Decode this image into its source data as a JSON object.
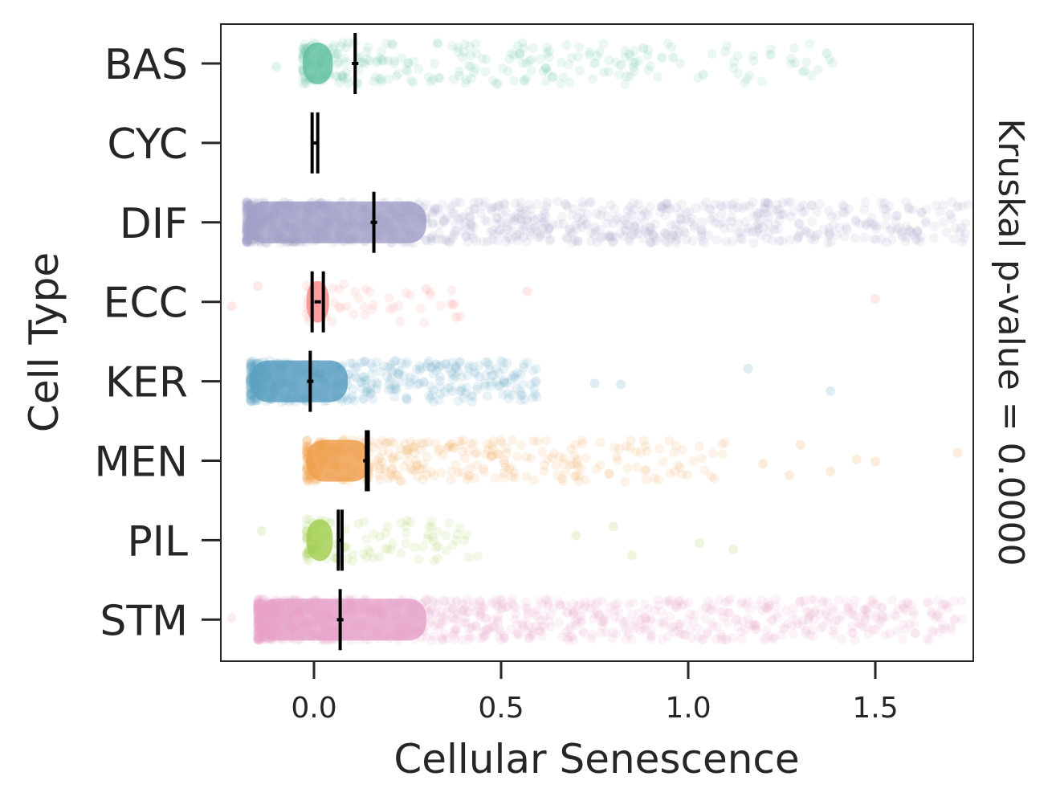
{
  "chart_data": {
    "type": "scatter",
    "subtype": "strip plot with median markers",
    "xlabel": "Cellular Senescence",
    "ylabel": "Cell Type",
    "right_label": "Kruskal p-value = 0.0000",
    "xlim": [
      -0.25,
      1.75
    ],
    "xticks": [
      0.0,
      0.5,
      1.0,
      1.5
    ],
    "xtick_labels": [
      "0.0",
      "0.5",
      "1.0",
      "1.5"
    ],
    "grid": false,
    "categories": [
      "BAS",
      "CYC",
      "DIF",
      "ECC",
      "KER",
      "MEN",
      "PIL",
      "STM"
    ],
    "series": [
      {
        "name": "BAS",
        "color": "#66c2a5",
        "center": 0.11,
        "median_lines": [
          0.11
        ],
        "core_range": [
          -0.03,
          0.05
        ],
        "spread_max": 1.4,
        "density": "medium",
        "outliers": [
          -0.1,
          0.55,
          0.62,
          0.75,
          0.82,
          0.88,
          0.93,
          0.96,
          1.04,
          1.22,
          1.37
        ]
      },
      {
        "name": "CYC",
        "color": "#222222",
        "center": 0.0,
        "median_lines": [
          -0.005,
          0.01
        ],
        "core_range": [
          0.0,
          0.0
        ],
        "spread_max": 0.0,
        "density": "none",
        "outliers": []
      },
      {
        "name": "DIF",
        "color": "#a6a3c9",
        "center": 0.16,
        "median_lines": [
          0.16
        ],
        "core_range": [
          -0.18,
          0.3
        ],
        "spread_max": 1.75,
        "density": "very high",
        "outliers": [
          1.7,
          1.72
        ]
      },
      {
        "name": "ECC",
        "color": "#fc8d8d",
        "center": 0.01,
        "median_lines": [
          -0.005,
          0.025
        ],
        "core_range": [
          -0.02,
          0.04
        ],
        "spread_max": 0.4,
        "density": "low",
        "outliers": [
          -0.22,
          -0.15,
          0.3,
          0.38,
          0.57,
          1.5
        ]
      },
      {
        "name": "KER",
        "color": "#5fa0c4",
        "center": -0.01,
        "median_lines": [
          -0.01
        ],
        "core_range": [
          -0.17,
          0.09
        ],
        "spread_max": 0.6,
        "density": "high",
        "outliers": [
          0.75,
          0.82,
          1.16,
          1.38
        ]
      },
      {
        "name": "MEN",
        "color": "#f0a050",
        "center": 0.14,
        "median_lines": [
          0.14,
          0.145
        ],
        "core_range": [
          -0.02,
          0.15
        ],
        "spread_max": 1.1,
        "density": "medium-high",
        "outliers": [
          1.2,
          1.27,
          1.3,
          1.38,
          1.45,
          1.5,
          1.72
        ]
      },
      {
        "name": "PIL",
        "color": "#a6d055",
        "center": 0.07,
        "median_lines": [
          0.065,
          0.075
        ],
        "core_range": [
          -0.02,
          0.05
        ],
        "spread_max": 0.45,
        "density": "low-medium",
        "outliers": [
          -0.14,
          0.7,
          0.8,
          0.85,
          1.03,
          1.12
        ]
      },
      {
        "name": "STM",
        "color": "#e7a6cc",
        "center": 0.07,
        "median_lines": [
          0.07
        ],
        "core_range": [
          -0.15,
          0.3
        ],
        "spread_max": 1.75,
        "density": "very high",
        "outliers": [
          -0.22,
          1.65
        ]
      }
    ]
  }
}
